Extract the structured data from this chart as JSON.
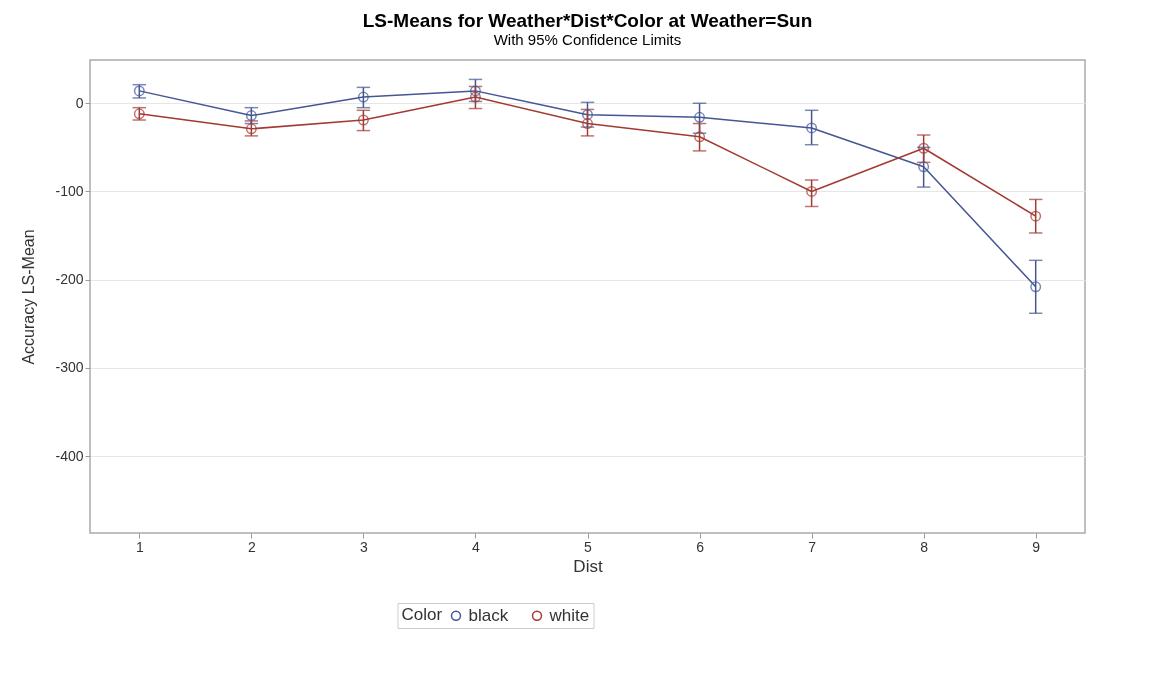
{
  "chart_data": {
    "type": "line",
    "title": "LS-Means for Weather*Dist*Color at Weather=Sun",
    "subtitle": "With 95% Confidence Limits",
    "xlabel": "Dist",
    "ylabel": "Accuracy LS-Mean",
    "legend_title": "Color",
    "x": [
      1,
      2,
      3,
      4,
      5,
      6,
      7,
      8,
      9
    ],
    "series": [
      {
        "name": "black",
        "color": "#445694",
        "values": [
          14,
          -14,
          7,
          14,
          -13,
          -16,
          -28,
          -72,
          -208
        ],
        "errors": [
          [
            6,
            21
          ],
          [
            -23,
            -5
          ],
          [
            -5,
            18
          ],
          [
            2,
            27
          ],
          [
            -27,
            1
          ],
          [
            -34,
            0
          ],
          [
            -47,
            -8
          ],
          [
            -95,
            -50
          ],
          [
            -238,
            -178
          ]
        ]
      },
      {
        "name": "white",
        "color": "#a23a32",
        "values": [
          -12,
          -29,
          -19,
          7,
          -23,
          -38,
          -100,
          -51,
          -128
        ],
        "errors": [
          [
            -19,
            -5
          ],
          [
            -37,
            -20
          ],
          [
            -31,
            -8
          ],
          [
            -6,
            19
          ],
          [
            -37,
            -7
          ],
          [
            -54,
            -23
          ],
          [
            -117,
            -87
          ],
          [
            -67,
            -36
          ],
          [
            -147,
            -109
          ]
        ]
      }
    ],
    "xlim": [
      0.56,
      9.44
    ],
    "xticks": [
      1,
      2,
      3,
      4,
      5,
      6,
      7,
      8,
      9
    ],
    "ylim": [
      -487,
      49
    ],
    "yticks": [
      -400,
      -300,
      -200,
      -100,
      0
    ],
    "grid": "y",
    "legend": "bottom",
    "marker": "circle",
    "line_style": "solid"
  }
}
